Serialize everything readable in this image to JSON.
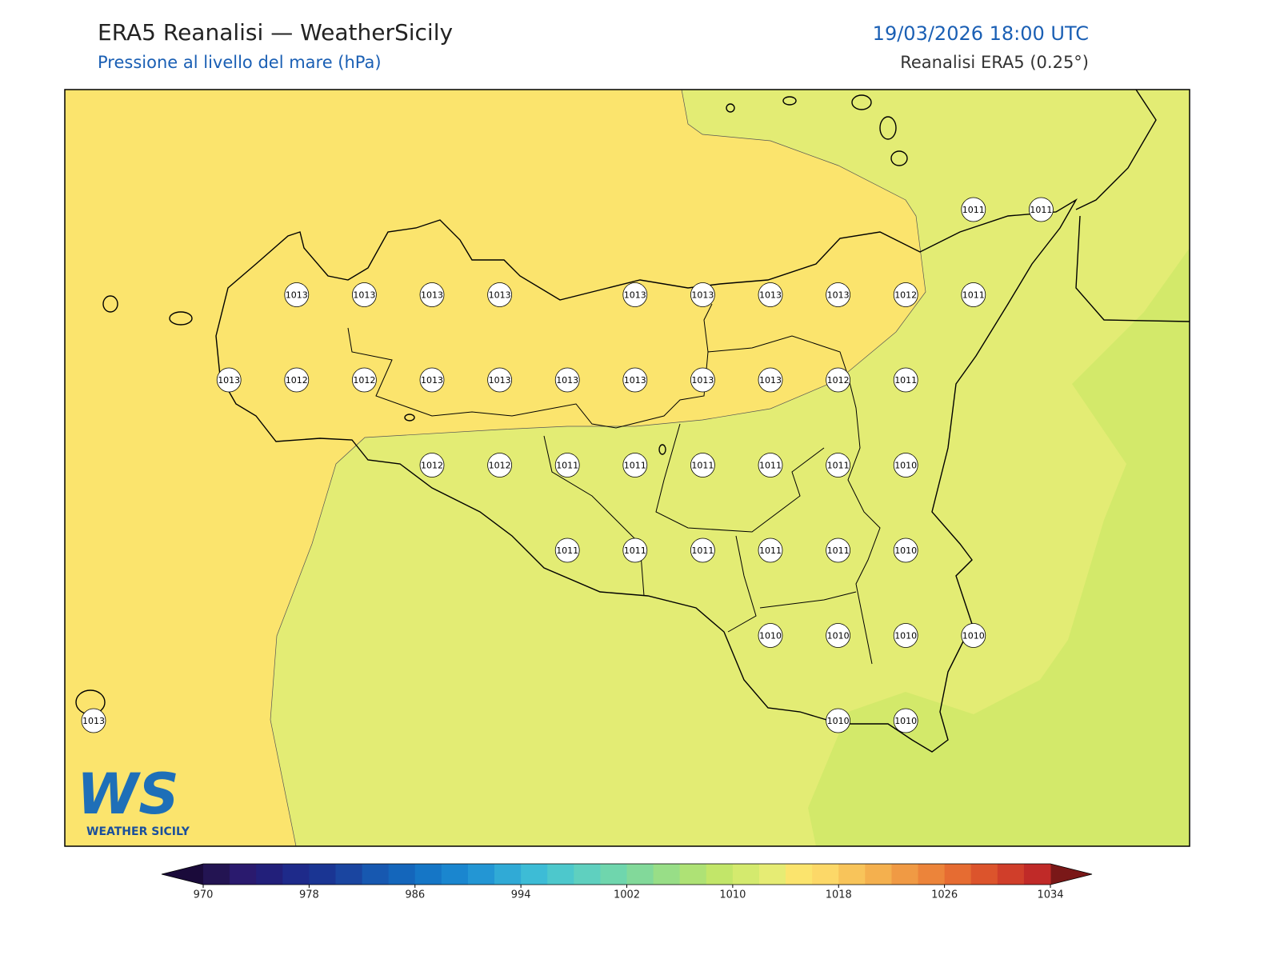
{
  "header": {
    "title": "ERA5 Reanalisi — WeatherSicily",
    "subtitle": "Pressione al livello del mare (hPa)",
    "datetime": "19/03/2026 18:00 UTC",
    "source": "Reanalisi ERA5 (0.25°)"
  },
  "pressure_grid": [
    [
      null,
      null,
      null,
      null,
      null,
      null,
      null,
      null,
      null,
      null,
      null,
      null,
      null,
      1011,
      1011
    ],
    [
      null,
      null,
      null,
      1013,
      1013,
      1013,
      1013,
      null,
      1013,
      1013,
      1013,
      1013,
      1012,
      1011,
      null
    ],
    [
      null,
      null,
      1013,
      1012,
      1012,
      1013,
      1013,
      1013,
      1013,
      1013,
      1013,
      1012,
      1011,
      null,
      null
    ],
    [
      null,
      null,
      null,
      null,
      null,
      1012,
      1012,
      1011,
      1011,
      1011,
      1011,
      1011,
      1010,
      null,
      null
    ],
    [
      null,
      null,
      null,
      null,
      null,
      null,
      null,
      1011,
      1011,
      1011,
      1011,
      1011,
      1010,
      null,
      null
    ],
    [
      null,
      null,
      null,
      null,
      null,
      null,
      null,
      null,
      null,
      null,
      1010,
      1010,
      1010,
      1010,
      null
    ],
    [
      1013,
      null,
      null,
      null,
      null,
      null,
      null,
      null,
      null,
      null,
      null,
      1010,
      1010,
      null,
      null
    ]
  ],
  "colorbar": {
    "ticks": [
      970,
      978,
      986,
      994,
      1002,
      1010,
      1018,
      1026,
      1034
    ],
    "under_color": "#1a0a3a",
    "over_color": "#7a1818",
    "colors": [
      "#231452",
      "#2a1a6e",
      "#221f7a",
      "#1e2a8a",
      "#1a3593",
      "#1a45a0",
      "#1758b0",
      "#1466bb",
      "#1576c6",
      "#1a86cf",
      "#2396d4",
      "#30aad6",
      "#3dbcd6",
      "#4dc8cc",
      "#5fd0bf",
      "#6fd6ad",
      "#82d99a",
      "#98de87",
      "#aee275",
      "#c2e669",
      "#d4ea6e",
      "#e6ec74",
      "#fbe46d",
      "#fcd868",
      "#f8c45a",
      "#f4b04e",
      "#f09a44",
      "#ec843a",
      "#e66c32",
      "#dc542c",
      "#d03e2a",
      "#c02a28"
    ]
  },
  "logo": {
    "mark": "WS",
    "text": "WEATHER SICILY"
  }
}
